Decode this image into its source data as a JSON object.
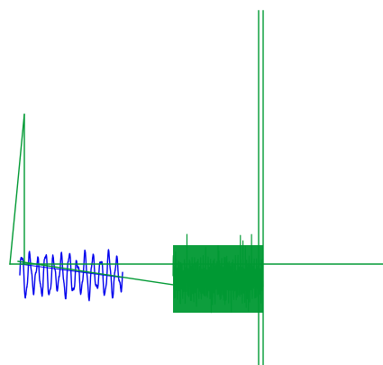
{
  "chart_data": {
    "type": "line",
    "title": "",
    "xlabel": "",
    "ylabel": "",
    "axes_visible": false,
    "grid": false,
    "legend": "none",
    "xlim": [
      0,
      425
    ],
    "ylim": [
      -405,
      0
    ],
    "series": [
      {
        "color": "#0000ee",
        "style": "oscillating-trace",
        "x_range": [
          22,
          136
        ],
        "y_center": -305,
        "amplitude": 24,
        "cycles": 13,
        "connector_points": [
          {
            "x": 22,
            "y": -293
          },
          {
            "x": 136,
            "y": -308
          }
        ]
      },
      {
        "color": "#009933",
        "style": "segments-and-noise",
        "segments": [
          {
            "x": [
              11,
              27
            ],
            "y": [
              -293,
              -127
            ]
          },
          {
            "x": [
              27,
              27
            ],
            "y": [
              -127,
              -293
            ]
          },
          {
            "x": [
              11,
              425
            ],
            "y": [
              -293,
              -293
            ]
          },
          {
            "x": [
              20,
              192
            ],
            "y": [
              -290,
              -316
            ]
          },
          {
            "x": [
              287,
              287
            ],
            "y": [
              -12,
              -405
            ]
          },
          {
            "x": [
              292,
              292
            ],
            "y": [
              -12,
              -405
            ]
          }
        ],
        "noise_block": {
          "x_range": [
            192,
            292
          ],
          "y_center": -310,
          "y_extent": [
            -250,
            -357
          ]
        }
      }
    ]
  }
}
